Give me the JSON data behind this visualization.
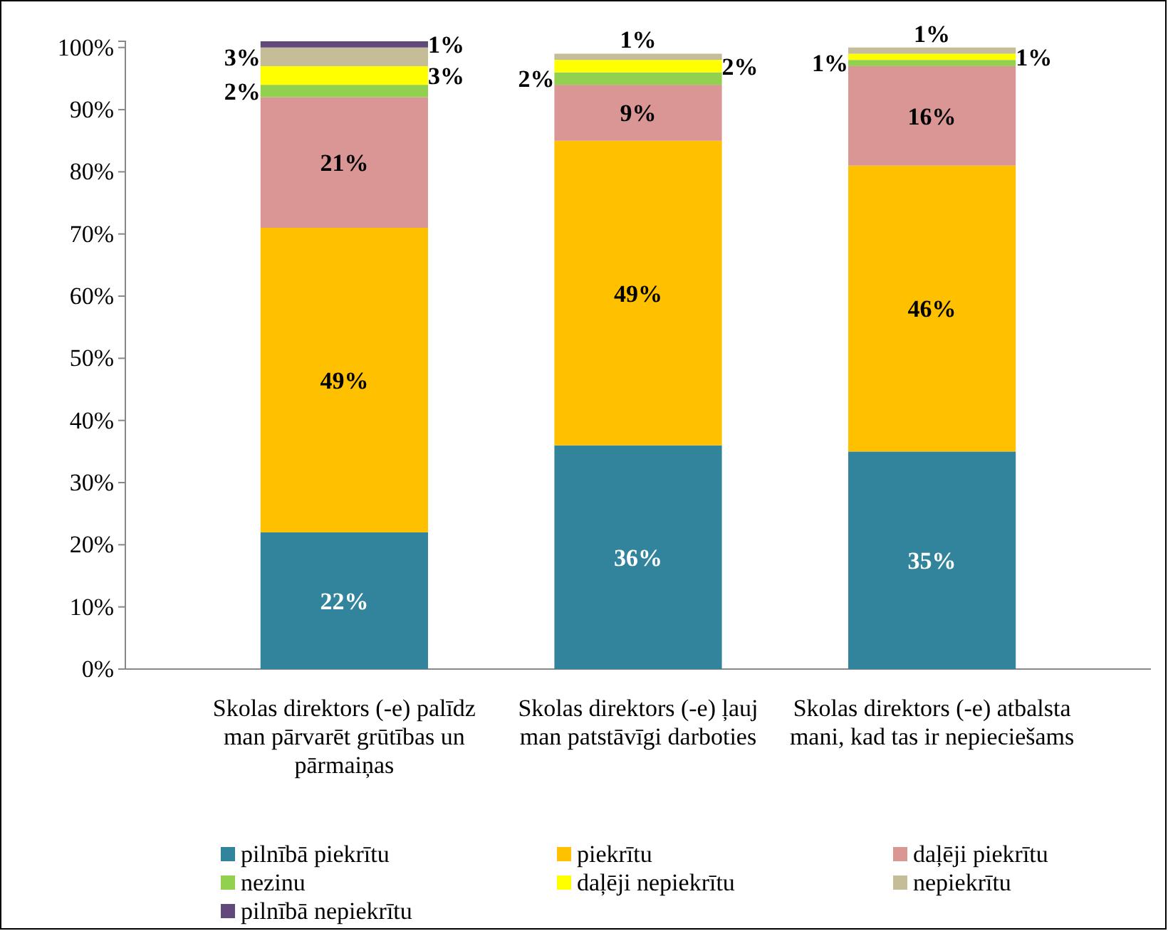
{
  "chart_data": {
    "type": "bar",
    "stacked": true,
    "categories": [
      "Skolas direktors (-e) palīdz man pārvarēt grūtības un pārmaiņas",
      "Skolas direktors (-e) ļauj man patstāvīgi darboties",
      "Skolas direktors (-e) atbalsta mani, kad tas ir nepieciešams"
    ],
    "series": [
      {
        "name": "pilnībā piekrītu",
        "color": "#31849b",
        "values": [
          22,
          36,
          35
        ],
        "value_labels": [
          "22%",
          "36%",
          "35%"
        ]
      },
      {
        "name": "piekrītu",
        "color": "#ffc000",
        "values": [
          49,
          49,
          46
        ],
        "value_labels": [
          "49%",
          "49%",
          "46%"
        ]
      },
      {
        "name": "daļēji piekrītu",
        "color": "#d99694",
        "values": [
          21,
          9,
          16
        ],
        "value_labels": [
          "21%",
          "9%",
          "16%"
        ]
      },
      {
        "name": "nezinu",
        "color": "#92d050",
        "values": [
          2,
          2,
          1
        ],
        "value_labels": [
          "2%",
          "2%",
          "1%"
        ]
      },
      {
        "name": "daļēji nepiekrītu",
        "color": "#ffff00",
        "values": [
          3,
          2,
          1
        ],
        "value_labels": [
          "3%",
          "2%",
          "1%"
        ]
      },
      {
        "name": "nepiekrītu",
        "color": "#c4bd97",
        "values": [
          3,
          1,
          1
        ],
        "value_labels": [
          "3%",
          "1%",
          "1%"
        ]
      },
      {
        "name": "pilnībā nepiekrītu",
        "color": "#604a7b",
        "values": [
          1,
          null,
          null
        ],
        "value_labels": [
          "1%",
          null,
          null
        ]
      }
    ],
    "ylim": [
      0,
      101
    ],
    "yticks": [
      {
        "value": 0,
        "label": "0%"
      },
      {
        "value": 10,
        "label": "10%"
      },
      {
        "value": 20,
        "label": "20%"
      },
      {
        "value": 30,
        "label": "30%"
      },
      {
        "value": 40,
        "label": "40%"
      },
      {
        "value": 50,
        "label": "50%"
      },
      {
        "value": 60,
        "label": "60%"
      },
      {
        "value": 70,
        "label": "70%"
      },
      {
        "value": 80,
        "label": "80%"
      },
      {
        "value": 90,
        "label": "90%"
      },
      {
        "value": 100,
        "label": "100%"
      }
    ],
    "grid": false,
    "legend": "bottom"
  }
}
